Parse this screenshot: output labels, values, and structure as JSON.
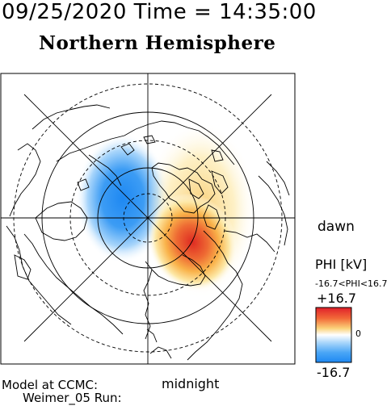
{
  "header": {
    "datetime": "09/25/2020 Time = 14:35:00",
    "hemisphere": "Northern Hemisphere"
  },
  "map": {
    "projection": "polar stereographic, north pole",
    "latitude_circles": [
      80,
      70,
      60,
      50
    ],
    "meridian_lines": 8,
    "negative_cell_color": "#2d8ff0",
    "positive_cell_color": "#e23a2a",
    "land_outline_color": "#000000"
  },
  "labels": {
    "dawn": "dawn",
    "midnight": "midnight",
    "model_line1": "Model at CCMC:",
    "model_line2": "Weimer_05 Run:"
  },
  "colorbar": {
    "title": "PHI [kV]",
    "range_text": "-16.7<PHI<16.7",
    "max_label": "+16.7",
    "zero_label": "0",
    "min_label": "-16.7",
    "max_value": 16.7,
    "min_value": -16.7,
    "colors": [
      "#1e90ff",
      "#7fc6ff",
      "#ffffff",
      "#ffe08a",
      "#ff8a3d",
      "#e0202a"
    ]
  }
}
